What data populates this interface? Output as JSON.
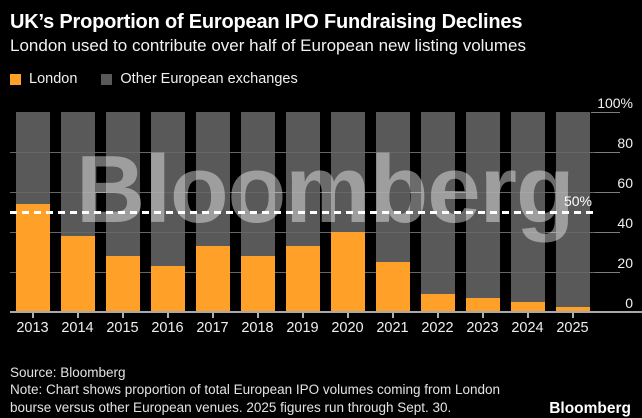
{
  "header": {
    "title": "UK’s Proportion of European IPO Fundraising Declines",
    "subtitle": "London used to contribute over half of European new listing volumes"
  },
  "legend": {
    "items": [
      {
        "label": "London",
        "color": "#FFA028"
      },
      {
        "label": "Other European exchanges",
        "color": "#595959"
      }
    ]
  },
  "chart_data": {
    "type": "bar",
    "stacked": true,
    "unit": "%",
    "title": "UK’s Proportion of European IPO Fundraising Declines",
    "categories": [
      "2013",
      "2014",
      "2015",
      "2016",
      "2017",
      "2018",
      "2019",
      "2020",
      "2021",
      "2022",
      "2023",
      "2024",
      "2025"
    ],
    "series": [
      {
        "name": "London",
        "color": "#FFA028",
        "values": [
          54,
          38,
          28,
          23,
          33,
          28,
          33,
          40,
          25,
          9,
          7,
          5,
          2.5
        ]
      },
      {
        "name": "Other European exchanges",
        "color": "#595959",
        "values": [
          46,
          62,
          72,
          77,
          67,
          72,
          67,
          60,
          75,
          91,
          93,
          95,
          97.5
        ]
      }
    ],
    "ylim": [
      0,
      100
    ],
    "y_ticks": [
      {
        "value": 100,
        "label": "100%"
      },
      {
        "value": 80,
        "label": "80"
      },
      {
        "value": 60,
        "label": "60"
      },
      {
        "value": 40,
        "label": "40"
      },
      {
        "value": 20,
        "label": "20"
      },
      {
        "value": 0,
        "label": "0"
      }
    ],
    "reference_line": {
      "value": 50,
      "label": "50%",
      "style": "dashed",
      "color": "#ffffff"
    },
    "watermark": "Bloomberg",
    "legend_position": "top-left",
    "grid": "horizontal",
    "axis_side": "right"
  },
  "footer": {
    "lines": [
      "Source: Bloomberg",
      "Note: Chart shows proportion of total European IPO volumes coming from London",
      "bourse versus other European venues. 2025 figures run through Sept. 30."
    ],
    "logo": "Bloomberg"
  },
  "colors": {
    "background": "#000000",
    "bar_london": "#FFA028",
    "bar_other": "#595959",
    "gridline": "#666666",
    "axis_line": "#a9a9a9",
    "tick_line": "#7e7e7e",
    "text": "#f0f0f0",
    "reference_line": "#ffffff",
    "watermark": "rgba(255,255,255,0.42)"
  }
}
